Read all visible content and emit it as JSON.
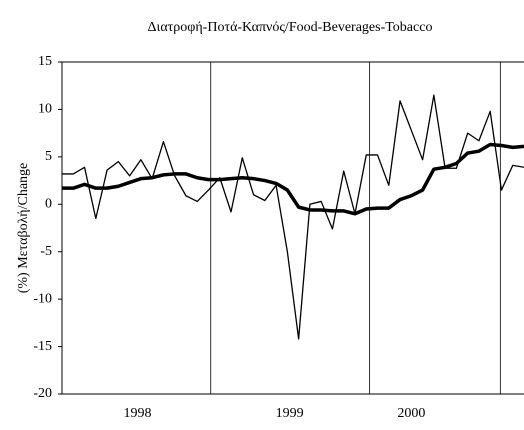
{
  "chart_data": {
    "type": "line",
    "title": "Διατροφή-Ποτά-Καπνός/Food-Beverages-Tobacco",
    "y_label": "(%) Μεταβολή/Change",
    "x": [
      0,
      1,
      2,
      3,
      4,
      5,
      6,
      7,
      8,
      9,
      10,
      11,
      12,
      13,
      14,
      15,
      16,
      17,
      18,
      19,
      20,
      21,
      22,
      23,
      24,
      25,
      26,
      27,
      28,
      29,
      30,
      31,
      32,
      33,
      34,
      35,
      36,
      37,
      38,
      39,
      40,
      41
    ],
    "series": [
      {
        "color": "#000000",
        "width": 1.3,
        "values": [
          3.2,
          3.2,
          3.9,
          -1.5,
          3.6,
          4.5,
          3.0,
          4.7,
          2.7,
          6.6,
          3.0,
          0.9,
          0.3,
          1.5,
          2.8,
          -0.8,
          4.9,
          1.0,
          0.4,
          2.0,
          -5.0,
          -14.2,
          0.0,
          0.3,
          -2.6,
          3.5,
          -1.0,
          5.2,
          5.2,
          2.0,
          10.9,
          7.8,
          4.7,
          11.5,
          3.8,
          3.8,
          7.5,
          6.7,
          9.8,
          1.5,
          4.1,
          3.9
        ]
      },
      {
        "color": "#000000",
        "width": 3.5,
        "values": [
          1.7,
          1.7,
          2.1,
          1.7,
          1.7,
          1.9,
          2.3,
          2.7,
          2.8,
          3.1,
          3.2,
          3.2,
          2.8,
          2.6,
          2.6,
          2.7,
          2.8,
          2.7,
          2.5,
          2.2,
          1.5,
          -0.3,
          -0.6,
          -0.6,
          -0.7,
          -0.7,
          -1.0,
          -0.5,
          -0.4,
          -0.4,
          0.5,
          0.9,
          1.5,
          3.7,
          3.9,
          4.3,
          5.4,
          5.6,
          6.3,
          6.2,
          6.0,
          6.1
        ]
      }
    ],
    "xlim": [
      0,
      41
    ],
    "xticks": [
      {
        "value": 6.7,
        "label": "1998"
      },
      {
        "value": 20.2,
        "label": "1999"
      },
      {
        "value": 31,
        "label": "2000"
      }
    ],
    "vlines": [
      13.2,
      27.3,
      38.9
    ],
    "ylim": [
      -20,
      15
    ],
    "yticks": [
      -20,
      -15,
      -10,
      -5,
      0,
      5,
      10,
      15
    ]
  }
}
